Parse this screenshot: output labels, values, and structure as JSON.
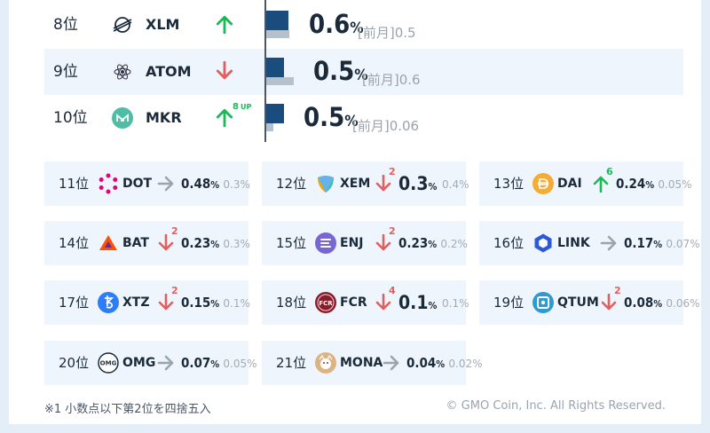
{
  "top_rows": [
    {
      "rank": "8位",
      "symbol": "XLM",
      "icon": "stellar-icon",
      "trend": "up",
      "badge": "",
      "share": "0.6",
      "prev": "0.5",
      "cur_pct": 0.6,
      "prev_pct": 0.5
    },
    {
      "rank": "9位",
      "symbol": "ATOM",
      "icon": "cosmos-icon",
      "trend": "down",
      "badge": "",
      "share": "0.5",
      "prev": "0.6",
      "cur_pct": 0.5,
      "prev_pct": 0.6
    },
    {
      "rank": "10位",
      "symbol": "MKR",
      "icon": "maker-icon",
      "trend": "up",
      "badge": "8",
      "badge_suffix": "UP",
      "share": "0.5",
      "prev": "0.06",
      "cur_pct": 0.5,
      "prev_pct": 0.06
    }
  ],
  "labels": {
    "percent": "%",
    "prev_prefix": "[前月]"
  },
  "grid": [
    {
      "rank": "11位",
      "symbol": "DOT",
      "icon": "polkadot-icon",
      "trend": "flat",
      "badge": "",
      "share": "0.48",
      "prev": "0.3%"
    },
    {
      "rank": "12位",
      "symbol": "XEM",
      "icon": "nem-icon",
      "trend": "down",
      "badge": "2",
      "share": "0.3",
      "prev": "0.4%"
    },
    {
      "rank": "13位",
      "symbol": "DAI",
      "icon": "dai-icon",
      "trend": "up",
      "badge": "6",
      "share": "0.24",
      "prev": "0.05%"
    },
    {
      "rank": "14位",
      "symbol": "BAT",
      "icon": "bat-icon",
      "trend": "down",
      "badge": "2",
      "share": "0.23",
      "prev": "0.3%"
    },
    {
      "rank": "15位",
      "symbol": "ENJ",
      "icon": "enjin-icon",
      "trend": "down",
      "badge": "2",
      "share": "0.23",
      "prev": "0.2%"
    },
    {
      "rank": "16位",
      "symbol": "LINK",
      "icon": "chainlink-icon",
      "trend": "flat",
      "badge": "",
      "share": "0.17",
      "prev": "0.07%"
    },
    {
      "rank": "17位",
      "symbol": "XTZ",
      "icon": "tezos-icon",
      "trend": "down",
      "badge": "2",
      "share": "0.15",
      "prev": "0.1%"
    },
    {
      "rank": "18位",
      "symbol": "FCR",
      "icon": "fcr-icon",
      "trend": "down",
      "badge": "4",
      "share": "0.1",
      "prev": "0.1%"
    },
    {
      "rank": "19位",
      "symbol": "QTUM",
      "icon": "qtum-icon",
      "trend": "down",
      "badge": "2",
      "share": "0.08",
      "prev": "0.06%"
    },
    {
      "rank": "20位",
      "symbol": "OMG",
      "icon": "omg-icon",
      "trend": "flat",
      "badge": "",
      "share": "0.07",
      "prev": "0.05%"
    },
    {
      "rank": "21位",
      "symbol": "MONA",
      "icon": "monacoin-icon",
      "trend": "flat",
      "badge": "",
      "share": "0.04",
      "prev": "0.02%"
    }
  ],
  "footnote": "※1 小数点以下第2位を四捨五入",
  "copyright": "© GMO Coin, Inc. All Rights Reserved.",
  "colors": {
    "up": "#1eb85a",
    "down": "#e06060",
    "flat": "#9aa4ad",
    "bar": "#1a4c7d",
    "bar_prev": "#b5c1cc"
  }
}
